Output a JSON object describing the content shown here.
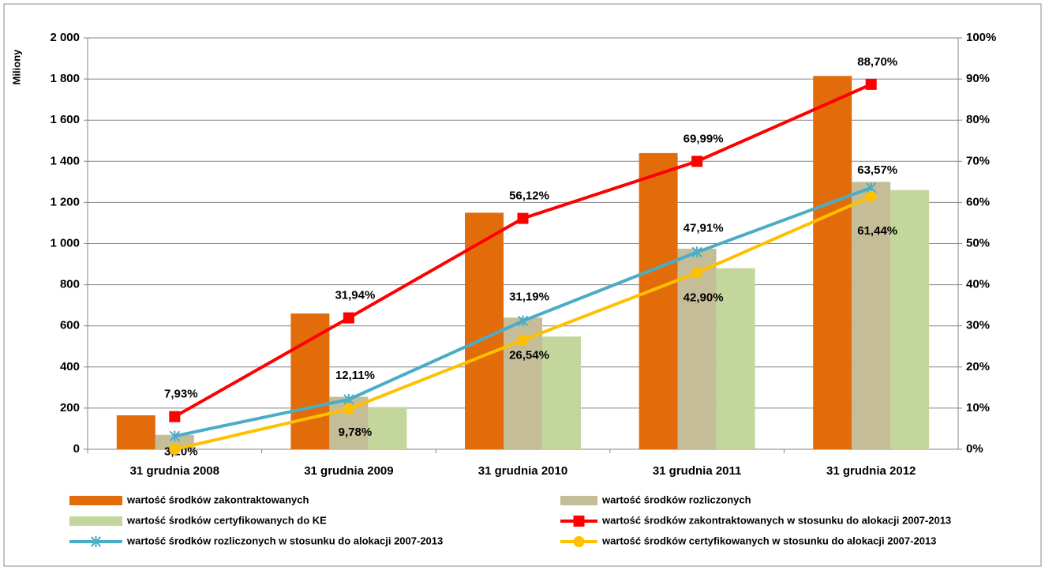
{
  "chart_data": {
    "type": "bar-line",
    "y_axis_label": "Miliony",
    "categories": [
      "31 grudnia 2008",
      "31 grudnia 2009",
      "31 grudnia 2010",
      "31 grudnia 2011",
      "31 grudnia 2012"
    ],
    "ylim": [
      0,
      2000
    ],
    "yticks": [
      0,
      200,
      400,
      600,
      800,
      {
        "value": 1000,
        "label": "1 000"
      },
      {
        "value": 1200,
        "label": "1 200"
      },
      {
        "value": 1400,
        "label": "1 400"
      },
      {
        "value": 1600,
        "label": "1 600"
      },
      {
        "value": 1800,
        "label": "1 800"
      },
      {
        "value": 2000,
        "label": "2 000"
      }
    ],
    "y2lim": [
      0,
      100
    ],
    "y2ticks": [
      {
        "value": 0,
        "label": "0%"
      },
      {
        "value": 10,
        "label": "10%"
      },
      {
        "value": 20,
        "label": "20%"
      },
      {
        "value": 30,
        "label": "30%"
      },
      {
        "value": 40,
        "label": "40%"
      },
      {
        "value": 50,
        "label": "50%"
      },
      {
        "value": 60,
        "label": "60%"
      },
      {
        "value": 70,
        "label": "70%"
      },
      {
        "value": 80,
        "label": "80%"
      },
      {
        "value": 90,
        "label": "90%"
      },
      {
        "value": 100,
        "label": "100%"
      }
    ],
    "grid": true,
    "series": [
      {
        "name": "wartość środków zakontraktowanych",
        "type": "bar",
        "color": "#e36c0a",
        "values": [
          165,
          660,
          1150,
          1440,
          1815
        ]
      },
      {
        "name": "wartość środków rozliczonych",
        "type": "bar",
        "color": "#c4bd97",
        "values": [
          70,
          255,
          640,
          975,
          1300
        ]
      },
      {
        "name": "wartość środków certyfikowanych do KE",
        "type": "bar",
        "color": "#c3d69b",
        "values": [
          0,
          205,
          548,
          880,
          1260
        ]
      },
      {
        "name": "wartość środków zakontraktowanych w stosunku do alokacji 2007-2013",
        "type": "line",
        "axis": "y2",
        "marker": "square",
        "color": "#ff0000",
        "values": [
          7.93,
          31.94,
          56.12,
          69.99,
          88.7
        ],
        "value_labels": [
          "7,93%",
          "31,94%",
          "56,12%",
          "69,99%",
          "88,70%"
        ]
      },
      {
        "name": "wartość środków rozliczonych w stosunku do alokacji 2007-2013",
        "type": "line",
        "axis": "y2",
        "marker": "star",
        "color": "#4bacc6",
        "values": [
          3.2,
          12.11,
          31.19,
          47.91,
          63.57
        ],
        "value_labels": [
          "3,20%",
          "12,11%",
          "31,19%",
          "47,91%",
          "63,57%"
        ]
      },
      {
        "name": "wartość środków certyfikowanych w stosunku do alokacji 2007-2013",
        "type": "line",
        "axis": "y2",
        "marker": "circle",
        "color": "#ffc000",
        "values": [
          0,
          9.78,
          26.54,
          42.9,
          61.44
        ],
        "value_labels": [
          null,
          "9,78%",
          "26,54%",
          "42,90%",
          "61,44%"
        ]
      }
    ]
  }
}
